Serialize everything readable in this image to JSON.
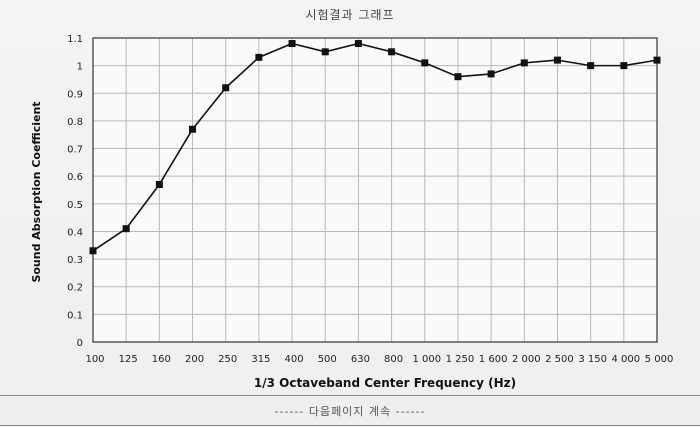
{
  "page": {
    "title": "시험결과 그래프",
    "footer_note": "------ 다음페이지 계속 ------"
  },
  "chart_data": {
    "type": "line",
    "title": "",
    "xlabel": "1/3 Octaveband Center Frequency (Hz)",
    "ylabel": "Sound Absorption Coefficient",
    "categories": [
      "100",
      "125",
      "160",
      "200",
      "250",
      "315",
      "400",
      "500",
      "630",
      "800",
      "1 000",
      "1 250",
      "1 600",
      "2 000",
      "2 500",
      "3 150",
      "4 000",
      "5 000"
    ],
    "series": [
      {
        "values": [
          0.33,
          0.41,
          0.57,
          0.77,
          0.92,
          1.03,
          1.08,
          1.05,
          1.08,
          1.05,
          1.01,
          0.96,
          0.97,
          1.01,
          1.02,
          1.0,
          1.0,
          1.02
        ]
      }
    ],
    "ylim": [
      0,
      1.1
    ],
    "yticks": [
      "0",
      "0.1",
      "0.2",
      "0.3",
      "0.4",
      "0.5",
      "0.6",
      "0.7",
      "0.8",
      "0.9",
      "1",
      "1.1"
    ],
    "grid": true,
    "marker": "square",
    "line_color": "#111111"
  }
}
